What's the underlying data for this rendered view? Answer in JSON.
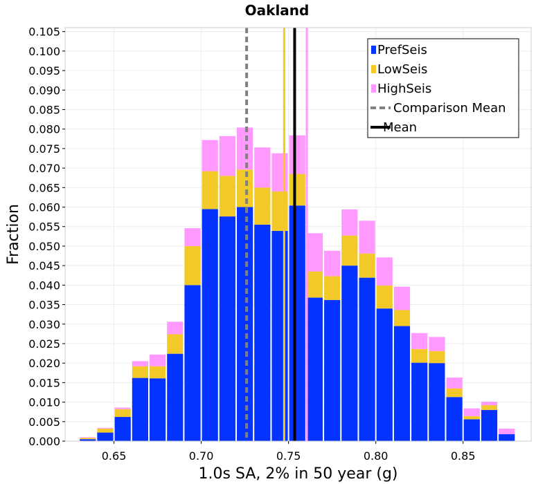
{
  "chart_data": {
    "type": "bar",
    "title": "Oakland",
    "xlabel": "1.0s SA, 2% in 50 year (g)",
    "ylabel": "Fraction",
    "xlim": [
      0.622,
      0.889
    ],
    "ylim": [
      0,
      0.106
    ],
    "xticks": [
      "0.65",
      "0.70",
      "0.75",
      "0.80",
      "0.85"
    ],
    "xtick_values": [
      0.65,
      0.7,
      0.75,
      0.8,
      0.85
    ],
    "yticks": [
      "0.000",
      "0.005",
      "0.010",
      "0.015",
      "0.020",
      "0.025",
      "0.030",
      "0.035",
      "0.040",
      "0.045",
      "0.050",
      "0.055",
      "0.060",
      "0.065",
      "0.070",
      "0.075",
      "0.080",
      "0.085",
      "0.090",
      "0.095",
      "0.100",
      "0.105"
    ],
    "ytick_values": [
      0.0,
      0.005,
      0.01,
      0.015,
      0.02,
      0.025,
      0.03,
      0.035,
      0.04,
      0.045,
      0.05,
      0.055,
      0.06,
      0.065,
      0.07,
      0.075,
      0.08,
      0.085,
      0.09,
      0.095,
      0.1,
      0.105
    ],
    "bin_width": 0.01,
    "bin_centers": [
      0.635,
      0.645,
      0.655,
      0.665,
      0.675,
      0.685,
      0.695,
      0.705,
      0.715,
      0.725,
      0.735,
      0.745,
      0.755,
      0.765,
      0.775,
      0.785,
      0.795,
      0.805,
      0.815,
      0.825,
      0.835,
      0.845,
      0.855,
      0.865,
      0.875
    ],
    "stacked": true,
    "grid": true,
    "legend_position": "top-right",
    "series": [
      {
        "name": "PrefSeis",
        "color": "#0433ff",
        "values": [
          0.0005,
          0.0022,
          0.0062,
          0.0162,
          0.0161,
          0.0224,
          0.04,
          0.0595,
          0.0576,
          0.06,
          0.0555,
          0.0539,
          0.0604,
          0.0368,
          0.0362,
          0.045,
          0.0419,
          0.034,
          0.0295,
          0.0201,
          0.02,
          0.0113,
          0.0056,
          0.008,
          0.0018
        ]
      },
      {
        "name": "LowSeis",
        "color": "#f2c928",
        "values": [
          0.0003,
          0.001,
          0.002,
          0.003,
          0.0031,
          0.005,
          0.01,
          0.0097,
          0.0104,
          0.0096,
          0.0095,
          0.0101,
          0.0081,
          0.0067,
          0.0061,
          0.0077,
          0.0062,
          0.0059,
          0.0041,
          0.0035,
          0.0031,
          0.0022,
          0.0008,
          0.0012,
          0.0
        ]
      },
      {
        "name": "HighSeis",
        "color": "#ff99ff",
        "values": [
          0.0002,
          0.0002,
          0.0004,
          0.0013,
          0.003,
          0.0032,
          0.0046,
          0.008,
          0.0102,
          0.0108,
          0.0103,
          0.0098,
          0.0099,
          0.0098,
          0.0065,
          0.0067,
          0.0084,
          0.0072,
          0.006,
          0.0041,
          0.0036,
          0.0028,
          0.002,
          0.0009,
          0.0014
        ]
      }
    ],
    "lines": [
      {
        "name": "Comparison Mean",
        "x": 0.726,
        "color": "#808080",
        "style": "dashed"
      },
      {
        "name": "Mean",
        "x": 0.7535,
        "color": "#000000",
        "style": "solid"
      }
    ],
    "extra_lines": [
      {
        "x": 0.7475,
        "color": "#f2c928"
      },
      {
        "x": 0.7605,
        "color": "#ff99ff"
      }
    ]
  }
}
